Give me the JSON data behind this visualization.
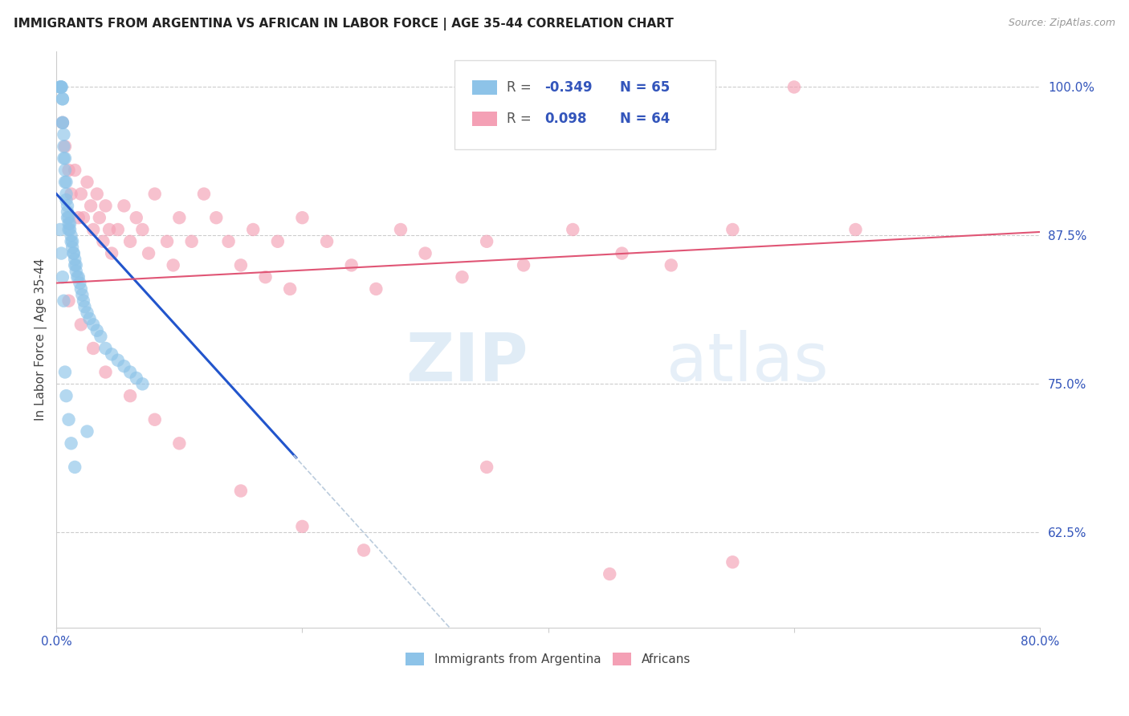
{
  "title": "IMMIGRANTS FROM ARGENTINA VS AFRICAN IN LABOR FORCE | AGE 35-44 CORRELATION CHART",
  "source": "Source: ZipAtlas.com",
  "ylabel": "In Labor Force | Age 35-44",
  "xlim": [
    0.0,
    0.8
  ],
  "ylim": [
    0.545,
    1.03
  ],
  "yticks_right": [
    0.625,
    0.75,
    0.875,
    1.0
  ],
  "ytick_labels_right": [
    "62.5%",
    "75.0%",
    "87.5%",
    "100.0%"
  ],
  "color_argentina": "#8DC3E8",
  "color_africans": "#F4A0B5",
  "color_trend_argentina": "#2255CC",
  "color_trend_africans": "#E05575",
  "color_trend_dashed": "#BBCCDD",
  "argentina_x": [
    0.003,
    0.003,
    0.004,
    0.004,
    0.004,
    0.005,
    0.005,
    0.005,
    0.005,
    0.006,
    0.006,
    0.006,
    0.007,
    0.007,
    0.007,
    0.008,
    0.008,
    0.008,
    0.009,
    0.009,
    0.009,
    0.01,
    0.01,
    0.01,
    0.011,
    0.011,
    0.012,
    0.012,
    0.013,
    0.013,
    0.014,
    0.014,
    0.015,
    0.015,
    0.016,
    0.016,
    0.017,
    0.018,
    0.019,
    0.02,
    0.021,
    0.022,
    0.023,
    0.025,
    0.027,
    0.03,
    0.033,
    0.036,
    0.04,
    0.045,
    0.05,
    0.055,
    0.06,
    0.065,
    0.07,
    0.003,
    0.004,
    0.005,
    0.006,
    0.007,
    0.008,
    0.01,
    0.012,
    0.015,
    0.025
  ],
  "argentina_y": [
    1.0,
    1.0,
    1.0,
    1.0,
    1.0,
    0.99,
    0.99,
    0.97,
    0.97,
    0.96,
    0.95,
    0.94,
    0.94,
    0.93,
    0.92,
    0.92,
    0.91,
    0.905,
    0.9,
    0.895,
    0.89,
    0.89,
    0.885,
    0.88,
    0.885,
    0.88,
    0.875,
    0.87,
    0.87,
    0.865,
    0.86,
    0.86,
    0.855,
    0.85,
    0.85,
    0.845,
    0.84,
    0.84,
    0.835,
    0.83,
    0.825,
    0.82,
    0.815,
    0.81,
    0.805,
    0.8,
    0.795,
    0.79,
    0.78,
    0.775,
    0.77,
    0.765,
    0.76,
    0.755,
    0.75,
    0.88,
    0.86,
    0.84,
    0.82,
    0.76,
    0.74,
    0.72,
    0.7,
    0.68,
    0.71
  ],
  "africans_x": [
    0.005,
    0.007,
    0.01,
    0.012,
    0.015,
    0.018,
    0.02,
    0.022,
    0.025,
    0.028,
    0.03,
    0.033,
    0.035,
    0.038,
    0.04,
    0.043,
    0.045,
    0.05,
    0.055,
    0.06,
    0.065,
    0.07,
    0.075,
    0.08,
    0.09,
    0.095,
    0.1,
    0.11,
    0.12,
    0.13,
    0.14,
    0.15,
    0.16,
    0.17,
    0.18,
    0.19,
    0.2,
    0.22,
    0.24,
    0.26,
    0.28,
    0.3,
    0.33,
    0.35,
    0.38,
    0.42,
    0.46,
    0.5,
    0.55,
    0.6,
    0.65,
    0.01,
    0.02,
    0.03,
    0.04,
    0.06,
    0.08,
    0.1,
    0.15,
    0.2,
    0.25,
    0.35,
    0.45,
    0.55
  ],
  "africans_y": [
    0.97,
    0.95,
    0.93,
    0.91,
    0.93,
    0.89,
    0.91,
    0.89,
    0.92,
    0.9,
    0.88,
    0.91,
    0.89,
    0.87,
    0.9,
    0.88,
    0.86,
    0.88,
    0.9,
    0.87,
    0.89,
    0.88,
    0.86,
    0.91,
    0.87,
    0.85,
    0.89,
    0.87,
    0.91,
    0.89,
    0.87,
    0.85,
    0.88,
    0.84,
    0.87,
    0.83,
    0.89,
    0.87,
    0.85,
    0.83,
    0.88,
    0.86,
    0.84,
    0.87,
    0.85,
    0.88,
    0.86,
    0.85,
    0.88,
    1.0,
    0.88,
    0.82,
    0.8,
    0.78,
    0.76,
    0.74,
    0.72,
    0.7,
    0.66,
    0.63,
    0.61,
    0.68,
    0.59,
    0.6
  ],
  "blue_line_x": [
    0.0,
    0.195
  ],
  "blue_line_y": [
    0.91,
    0.688
  ],
  "gray_line_x": [
    0.193,
    0.525
  ],
  "gray_line_y": [
    0.69,
    0.31
  ],
  "pink_line_x": [
    0.0,
    0.8
  ],
  "pink_line_y": [
    0.835,
    0.878
  ]
}
